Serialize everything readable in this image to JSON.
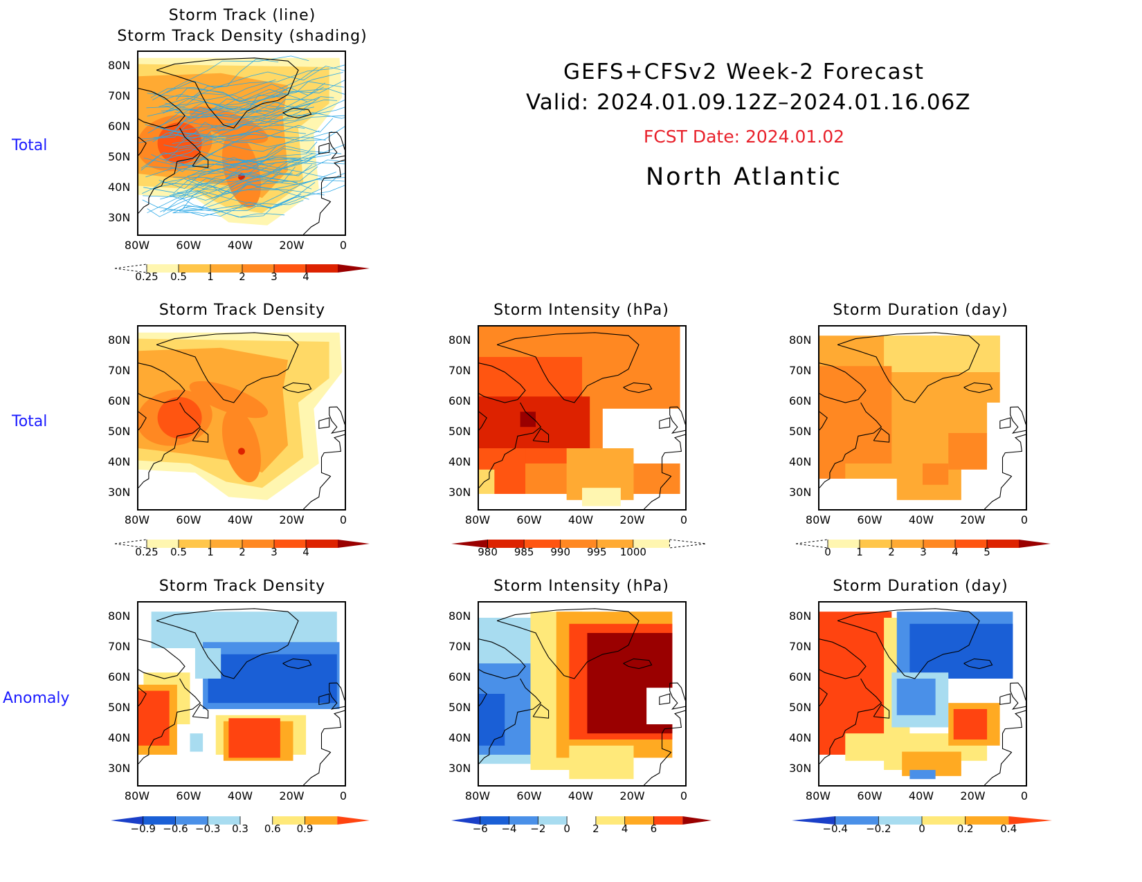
{
  "header": {
    "line1": "GEFS+CFSv2 Week-2 Forecast",
    "line2": "Valid: 2024.01.09.12Z–2024.01.16.06Z",
    "fcst": "FCST Date: 2024.01.02",
    "region": "North Atlantic",
    "fcst_color": "#e8202a"
  },
  "rows": {
    "r1": "Total",
    "r2": "Total",
    "r3": "Anomaly"
  },
  "panels": {
    "p1": {
      "title1": "Storm Track (line)",
      "title2": "Storm Track Density (shading)"
    },
    "p2": {
      "title": "Storm Track Density"
    },
    "p3": {
      "title": "Storm Intensity (hPa)"
    },
    "p4": {
      "title": "Storm Duration (day)"
    },
    "p5": {
      "title": "Storm Track Density"
    },
    "p6": {
      "title": "Storm Intensity (hPa)"
    },
    "p7": {
      "title": "Storm Duration (day)"
    }
  },
  "axes": {
    "x_ticks": [
      "80W",
      "60W",
      "40W",
      "20W",
      "0"
    ],
    "y_ticks": [
      "80N",
      "70N",
      "60N",
      "50N",
      "40N",
      "30N"
    ]
  },
  "colorbars": {
    "density": [
      "0.25",
      "0.5",
      "1",
      "2",
      "3",
      "4"
    ],
    "intensity": [
      "980",
      "985",
      "990",
      "995",
      "1000"
    ],
    "duration": [
      "0",
      "1",
      "2",
      "3",
      "4",
      "5"
    ],
    "density_anom": [
      "−0.9",
      "−0.6",
      "−0.3",
      "0.3",
      "0.6",
      "0.9"
    ],
    "intensity_anom": [
      "−6",
      "−4",
      "−2",
      "0",
      "2",
      "4",
      "6"
    ],
    "duration_anom": [
      "−0.4",
      "−0.2",
      "0",
      "0.2",
      "0.4"
    ]
  },
  "chart_data": [
    {
      "type": "heatmap",
      "title": "Storm Track (line) / Storm Track Density (shading)",
      "xlim": [
        -80,
        0
      ],
      "ylim": [
        25,
        85
      ],
      "levels": [
        0.25,
        0.5,
        1,
        2,
        3,
        4
      ],
      "colors": [
        "#fff6b0",
        "#ffd966",
        "#ffaa33",
        "#ff8822",
        "#ff5511",
        "#dd2200",
        "#9a0000"
      ],
      "track_line_color": "#2aa7e6"
    },
    {
      "type": "heatmap",
      "title": "Storm Track Density",
      "xlim": [
        -80,
        0
      ],
      "ylim": [
        25,
        85
      ],
      "levels": [
        0.25,
        0.5,
        1,
        2,
        3,
        4
      ]
    },
    {
      "type": "heatmap",
      "title": "Storm Intensity (hPa)",
      "xlim": [
        -80,
        0
      ],
      "ylim": [
        25,
        85
      ],
      "levels": [
        980,
        985,
        990,
        995,
        1000
      ]
    },
    {
      "type": "heatmap",
      "title": "Storm Duration (day)",
      "xlim": [
        -80,
        0
      ],
      "ylim": [
        25,
        85
      ],
      "levels": [
        0,
        1,
        2,
        3,
        4,
        5
      ]
    },
    {
      "type": "heatmap",
      "title": "Storm Track Density",
      "xlim": [
        -80,
        0
      ],
      "ylim": [
        25,
        85
      ],
      "levels": [
        -0.9,
        -0.6,
        -0.3,
        0.3,
        0.6,
        0.9
      ]
    },
    {
      "type": "heatmap",
      "title": "Storm Intensity (hPa)",
      "xlim": [
        -80,
        0
      ],
      "ylim": [
        25,
        85
      ],
      "levels": [
        -6,
        -4,
        -2,
        0,
        2,
        4,
        6
      ]
    },
    {
      "type": "heatmap",
      "title": "Storm Duration (day)",
      "xlim": [
        -80,
        0
      ],
      "ylim": [
        25,
        85
      ],
      "levels": [
        -0.4,
        -0.2,
        0,
        0.2,
        0.4
      ]
    }
  ]
}
